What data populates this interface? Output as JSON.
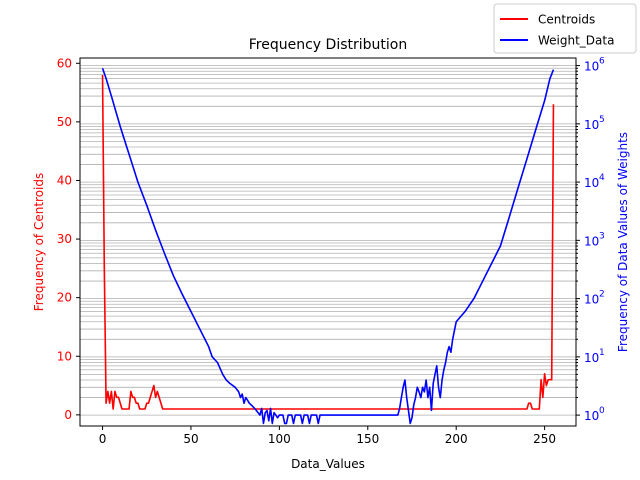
{
  "chart_data": {
    "type": "line",
    "title": "Frequency Distribution",
    "xlabel": "Data_Values",
    "xlim": [
      -12.75,
      267.75
    ],
    "xticks": [
      0,
      50,
      100,
      150,
      200,
      250
    ],
    "left_axis": {
      "label": "Frequency of Centroids",
      "ylim": [
        -1.9,
        60.9
      ],
      "ticks": [
        0,
        10,
        20,
        30,
        40,
        50,
        60
      ],
      "color": "#ff0000"
    },
    "right_axis": {
      "label": "Frequency of Data Values of Weights",
      "scale": "log",
      "ylim": [
        0.65,
        1350000
      ],
      "ticks": [
        1,
        10,
        100,
        1000,
        10000,
        100000,
        1000000
      ],
      "tick_labels": [
        "10",
        "10",
        "10",
        "10",
        "10",
        "10",
        "10"
      ],
      "tick_exponents": [
        "0",
        "1",
        "2",
        "3",
        "4",
        "5",
        "6"
      ],
      "color": "#0000ff"
    },
    "grid": "horizontal, right axis (major and minor)",
    "legend": {
      "placement": "top-right, outside plot",
      "entries": [
        "Centroids",
        "Weight_Data"
      ]
    },
    "series": [
      {
        "name": "Centroids",
        "axis": "left",
        "color": "#ff0000",
        "x": [
          0,
          1,
          2,
          3,
          4,
          5,
          6,
          7,
          8,
          9,
          10,
          11,
          12,
          13,
          14,
          15,
          16,
          17,
          18,
          19,
          20,
          21,
          22,
          23,
          24,
          25,
          26,
          27,
          28,
          29,
          30,
          31,
          32,
          33,
          34,
          35,
          40,
          60,
          80,
          100,
          120,
          140,
          160,
          180,
          200,
          220,
          238,
          239,
          240,
          241,
          242,
          243,
          244,
          245,
          246,
          247,
          248,
          249,
          250,
          251,
          252,
          253,
          254,
          255
        ],
        "y": [
          58,
          25,
          2,
          4,
          2,
          4,
          1,
          4,
          3,
          3,
          2,
          1,
          1,
          1,
          1,
          1,
          4,
          3,
          3,
          2,
          2,
          1,
          1,
          1,
          1,
          2,
          2,
          3,
          4,
          5,
          3,
          4,
          3,
          2,
          1,
          1,
          1,
          1,
          1,
          1,
          1,
          1,
          1,
          1,
          1,
          1,
          1,
          1,
          1,
          2,
          2,
          1,
          1,
          1,
          1,
          1,
          6,
          3,
          7,
          5,
          6,
          6,
          6,
          53
        ]
      },
      {
        "name": "Weight_Data",
        "axis": "right",
        "color": "#0000ff",
        "x": [
          0,
          2,
          5,
          10,
          15,
          20,
          25,
          30,
          35,
          40,
          45,
          50,
          55,
          60,
          62,
          65,
          68,
          70,
          72,
          75,
          77,
          78,
          79,
          80,
          81,
          82,
          83,
          84,
          85,
          86,
          87,
          88,
          89,
          90,
          91,
          92,
          93,
          94,
          95,
          96,
          97,
          98,
          99,
          100,
          101,
          102,
          103,
          104,
          105,
          106,
          107,
          108,
          109,
          110,
          111,
          112,
          113,
          114,
          115,
          116,
          117,
          118,
          119,
          120,
          121,
          122,
          123,
          124,
          125,
          126,
          127,
          128,
          130,
          140,
          150,
          160,
          165,
          167,
          168,
          169,
          170,
          171,
          172,
          173,
          174,
          175,
          176,
          177,
          178,
          179,
          180,
          181,
          182,
          183,
          184,
          185,
          186,
          187,
          188,
          189,
          190,
          191,
          192,
          193,
          194,
          195,
          196,
          197,
          198,
          200,
          205,
          210,
          215,
          220,
          225,
          230,
          235,
          240,
          245,
          250,
          253,
          255
        ],
        "y": [
          900000,
          600000,
          300000,
          90000,
          30000,
          10000,
          4000,
          1500,
          600,
          250,
          120,
          60,
          30,
          15,
          10,
          8,
          5,
          4,
          3.5,
          3,
          2.5,
          2,
          2.3,
          1.6,
          2,
          1.8,
          1.6,
          1.5,
          1.4,
          1.3,
          1.2,
          1.1,
          1.0,
          1.3,
          0.72,
          1.1,
          1.2,
          0.8,
          1.3,
          0.72,
          1.1,
          1.0,
          0.9,
          1,
          1,
          1,
          0.72,
          0.72,
          1,
          1,
          1,
          0.72,
          1,
          1,
          1,
          1,
          0.72,
          1,
          1,
          1,
          0.72,
          1,
          1,
          1,
          1,
          0.72,
          1,
          1,
          1,
          1,
          1,
          1,
          1,
          1,
          1,
          1,
          1,
          1,
          1.3,
          2,
          3,
          4,
          2,
          1.2,
          0.72,
          0.9,
          1.5,
          2,
          3,
          2.5,
          2,
          3,
          2.5,
          4,
          2,
          3,
          1.2,
          3.5,
          5,
          7,
          3,
          2,
          4,
          6,
          8,
          12,
          15,
          12,
          20,
          40,
          60,
          100,
          200,
          400,
          800,
          2500,
          8000,
          25000,
          80000,
          250000,
          600000,
          850000
        ]
      }
    ]
  }
}
